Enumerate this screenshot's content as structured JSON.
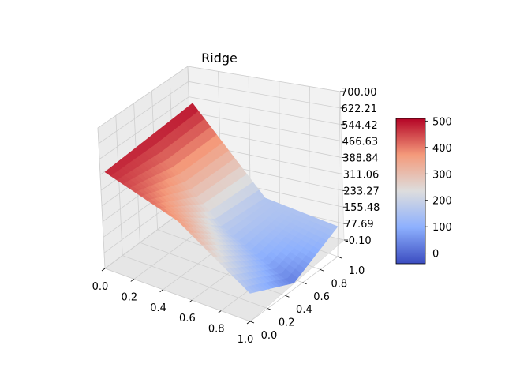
{
  "chart_data": {
    "type": "surface3d",
    "title": "Ridge",
    "xlabel": "",
    "ylabel": "",
    "zlabel": "",
    "x_ticks": [
      "0.0",
      "0.2",
      "0.4",
      "0.6",
      "0.8",
      "1.0"
    ],
    "y_ticks": [
      "0.0",
      "0.2",
      "0.4",
      "0.6",
      "0.8",
      "1.0"
    ],
    "z_ticks": [
      "-0.10",
      "77.69",
      "155.48",
      "233.27",
      "311.06",
      "388.84",
      "466.63",
      "544.42",
      "622.21",
      "700.00"
    ],
    "xlim": [
      0,
      1
    ],
    "ylim": [
      0,
      1
    ],
    "zlim": [
      -0.1,
      700
    ],
    "grid": true,
    "colormap": "coolwarm",
    "colorbar": {
      "ticks": [
        "0",
        "100",
        "200",
        "300",
        "400",
        "500"
      ],
      "range": [
        -40,
        510
      ]
    },
    "surface_samples": [
      {
        "x": 0.0,
        "y": 0.0,
        "z": 480
      },
      {
        "x": 0.0,
        "y": 1.0,
        "z": 500
      },
      {
        "x": 0.5,
        "y": 0.0,
        "z": 370
      },
      {
        "x": 0.5,
        "y": 0.5,
        "z": 180
      },
      {
        "x": 0.5,
        "y": 1.0,
        "z": 160
      },
      {
        "x": 1.0,
        "y": 0.0,
        "z": 140
      },
      {
        "x": 1.0,
        "y": 0.5,
        "z": 30
      },
      {
        "x": 1.0,
        "y": 1.0,
        "z": 150
      }
    ]
  }
}
